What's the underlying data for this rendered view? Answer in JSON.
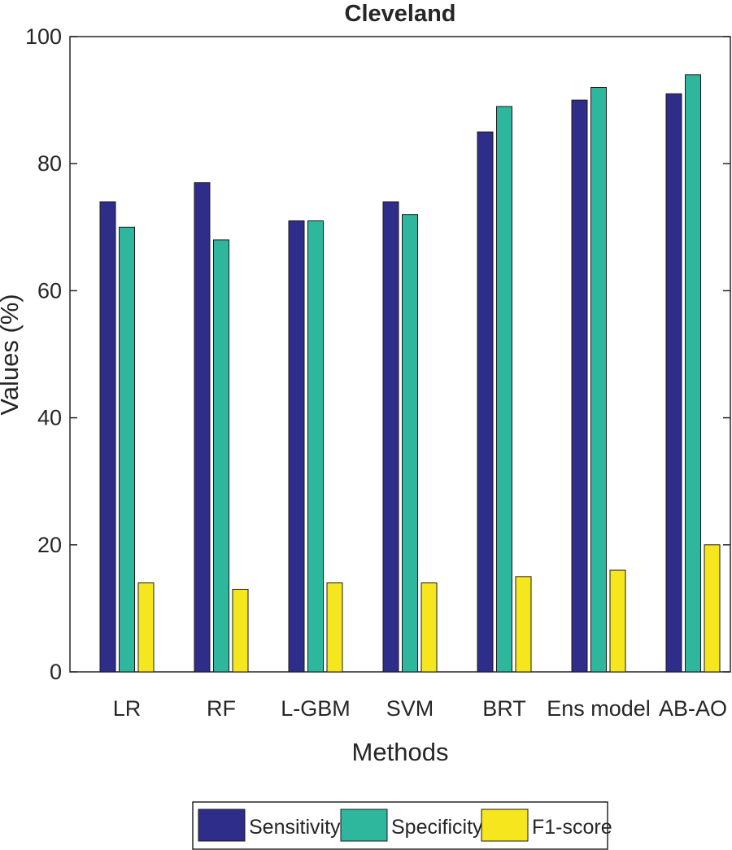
{
  "chart_data": {
    "type": "bar",
    "title": "Cleveland",
    "xlabel": "Methods",
    "ylabel": "Values (%)",
    "ylim": [
      0,
      100
    ],
    "yticks": [
      0,
      20,
      40,
      60,
      80,
      100
    ],
    "categories": [
      "LR",
      "RF",
      "L-GBM",
      "SVM",
      "BRT",
      "Ens model",
      "AB-AO"
    ],
    "series": [
      {
        "name": "Sensitivity",
        "color": "#2e2d8a",
        "values": [
          74,
          77,
          71,
          74,
          85,
          90,
          91
        ]
      },
      {
        "name": "Specificity",
        "color": "#2eb79c",
        "values": [
          70,
          68,
          71,
          72,
          89,
          92,
          94
        ]
      },
      {
        "name": "F1-score",
        "color": "#f5e61e",
        "values": [
          14,
          13,
          14,
          14,
          15,
          16,
          20
        ]
      }
    ],
    "grid": false,
    "legend_position": "bottom"
  }
}
